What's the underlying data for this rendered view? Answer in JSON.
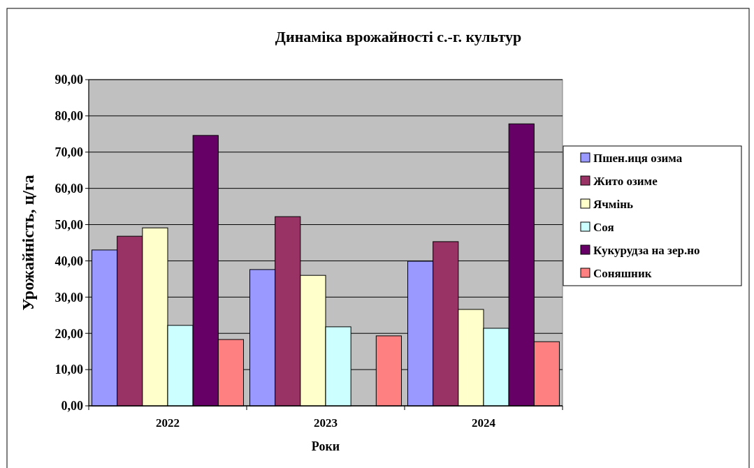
{
  "chart_data": {
    "type": "bar",
    "title": "Динаміка врожайності с.-г. культур",
    "xlabel": "Роки",
    "ylabel": "Урожайність, ц/га",
    "categories": [
      "2022",
      "2023",
      "2024"
    ],
    "series": [
      {
        "name": "Пшен.иця озима",
        "color": "#9999ff",
        "values": [
          43.0,
          37.6,
          39.9
        ]
      },
      {
        "name": "Жито озиме",
        "color": "#993366",
        "values": [
          46.8,
          52.2,
          45.3
        ]
      },
      {
        "name": "Ячмінь",
        "color": "#ffffcc",
        "values": [
          49.1,
          36.0,
          26.6
        ]
      },
      {
        "name": "Соя",
        "color": "#ccffff",
        "values": [
          22.2,
          21.8,
          21.4
        ]
      },
      {
        "name": "Кукурудза на зер.но",
        "color": "#660066",
        "values": [
          74.6,
          null,
          77.8
        ]
      },
      {
        "name": "Соняшник",
        "color": "#ff8080",
        "values": [
          18.3,
          19.3,
          17.7
        ]
      }
    ],
    "ylim": [
      0,
      90
    ],
    "yticks": [
      {
        "value": 0,
        "label": "0,00"
      },
      {
        "value": 10,
        "label": "10,00"
      },
      {
        "value": 20,
        "label": "20,00"
      },
      {
        "value": 30,
        "label": "30,00"
      },
      {
        "value": 40,
        "label": "40,00"
      },
      {
        "value": 50,
        "label": "50,00"
      },
      {
        "value": 60,
        "label": "60,00"
      },
      {
        "value": 70,
        "label": "70,00"
      },
      {
        "value": 80,
        "label": "80,00"
      },
      {
        "value": 90,
        "label": "90,00"
      }
    ],
    "grid": "y",
    "legend": "right"
  }
}
